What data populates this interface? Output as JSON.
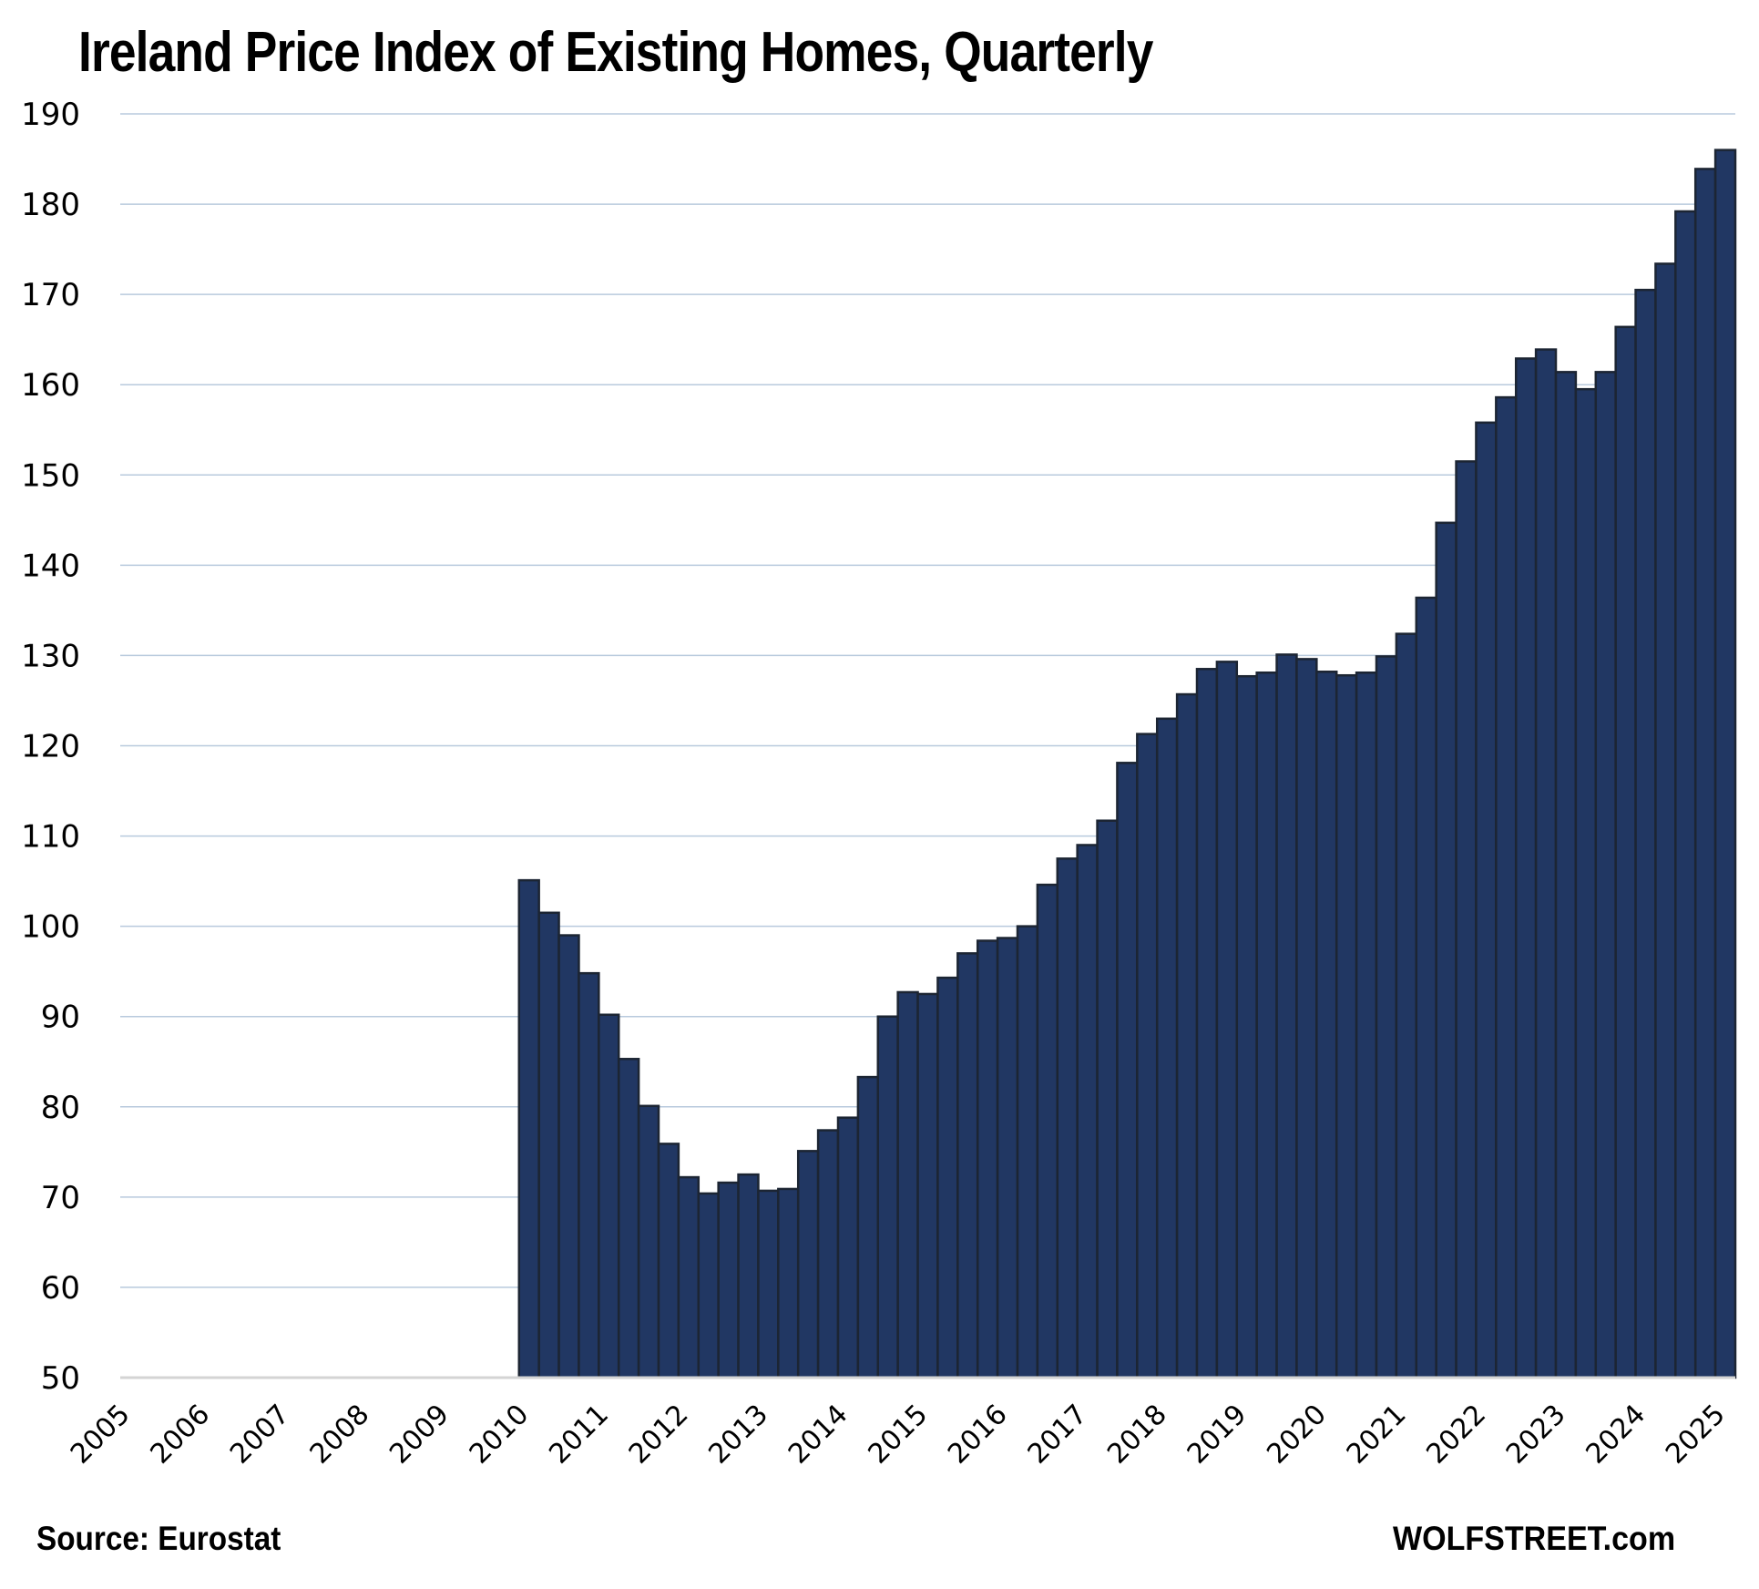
{
  "chart_data": {
    "type": "bar",
    "title": "Ireland Price Index of Existing Homes, Quarterly",
    "xlabel": "",
    "ylabel": "",
    "ylim": [
      50,
      190
    ],
    "yticks": [
      50,
      60,
      70,
      80,
      90,
      100,
      110,
      120,
      130,
      140,
      150,
      160,
      170,
      180,
      190
    ],
    "grid": true,
    "legend": "none",
    "x_range": [
      "2005-Q1",
      "2025-Q1"
    ],
    "xtick_labels": [
      "2005",
      "2006",
      "2007",
      "2008",
      "2009",
      "2010",
      "2011",
      "2012",
      "2013",
      "2014",
      "2015",
      "2016",
      "2017",
      "2018",
      "2019",
      "2020",
      "2021",
      "2022",
      "2023",
      "2024",
      "2025"
    ],
    "categories": [
      "2010-Q1",
      "2010-Q2",
      "2010-Q3",
      "2010-Q4",
      "2011-Q1",
      "2011-Q2",
      "2011-Q3",
      "2011-Q4",
      "2012-Q1",
      "2012-Q2",
      "2012-Q3",
      "2012-Q4",
      "2013-Q1",
      "2013-Q2",
      "2013-Q3",
      "2013-Q4",
      "2014-Q1",
      "2014-Q2",
      "2014-Q3",
      "2014-Q4",
      "2015-Q1",
      "2015-Q2",
      "2015-Q3",
      "2015-Q4",
      "2016-Q1",
      "2016-Q2",
      "2016-Q3",
      "2016-Q4",
      "2017-Q1",
      "2017-Q2",
      "2017-Q3",
      "2017-Q4",
      "2018-Q1",
      "2018-Q2",
      "2018-Q3",
      "2018-Q4",
      "2019-Q1",
      "2019-Q2",
      "2019-Q3",
      "2019-Q4",
      "2020-Q1",
      "2020-Q2",
      "2020-Q3",
      "2020-Q4",
      "2021-Q1",
      "2021-Q2",
      "2021-Q3",
      "2021-Q4",
      "2022-Q1",
      "2022-Q2",
      "2022-Q3",
      "2022-Q4",
      "2023-Q1",
      "2023-Q2",
      "2023-Q3",
      "2023-Q4",
      "2024-Q1",
      "2024-Q2",
      "2024-Q3",
      "2024-Q4",
      "2025-Q1"
    ],
    "series": [
      {
        "name": "Price Index of Existing Homes",
        "color": "#213763",
        "values": [
          105.1,
          101.5,
          99.0,
          94.8,
          90.2,
          85.3,
          80.1,
          75.9,
          72.2,
          70.4,
          71.6,
          72.5,
          70.7,
          70.9,
          75.1,
          77.4,
          78.8,
          83.3,
          90.0,
          92.7,
          92.5,
          94.3,
          97.0,
          98.4,
          98.7,
          100.0,
          104.6,
          107.5,
          109.0,
          111.7,
          118.1,
          121.3,
          123.0,
          125.7,
          128.5,
          129.3,
          127.7,
          128.1,
          130.1,
          129.6,
          128.2,
          127.8,
          128.1,
          129.9,
          132.4,
          136.4,
          144.7,
          151.5,
          155.8,
          158.6,
          162.9,
          163.9,
          161.4,
          159.5,
          161.4,
          166.4,
          170.5,
          173.4,
          179.2,
          183.9,
          186.0
        ]
      }
    ]
  },
  "footer": {
    "source": "Source: Eurostat",
    "brand": "WOLFSTREET.com"
  }
}
